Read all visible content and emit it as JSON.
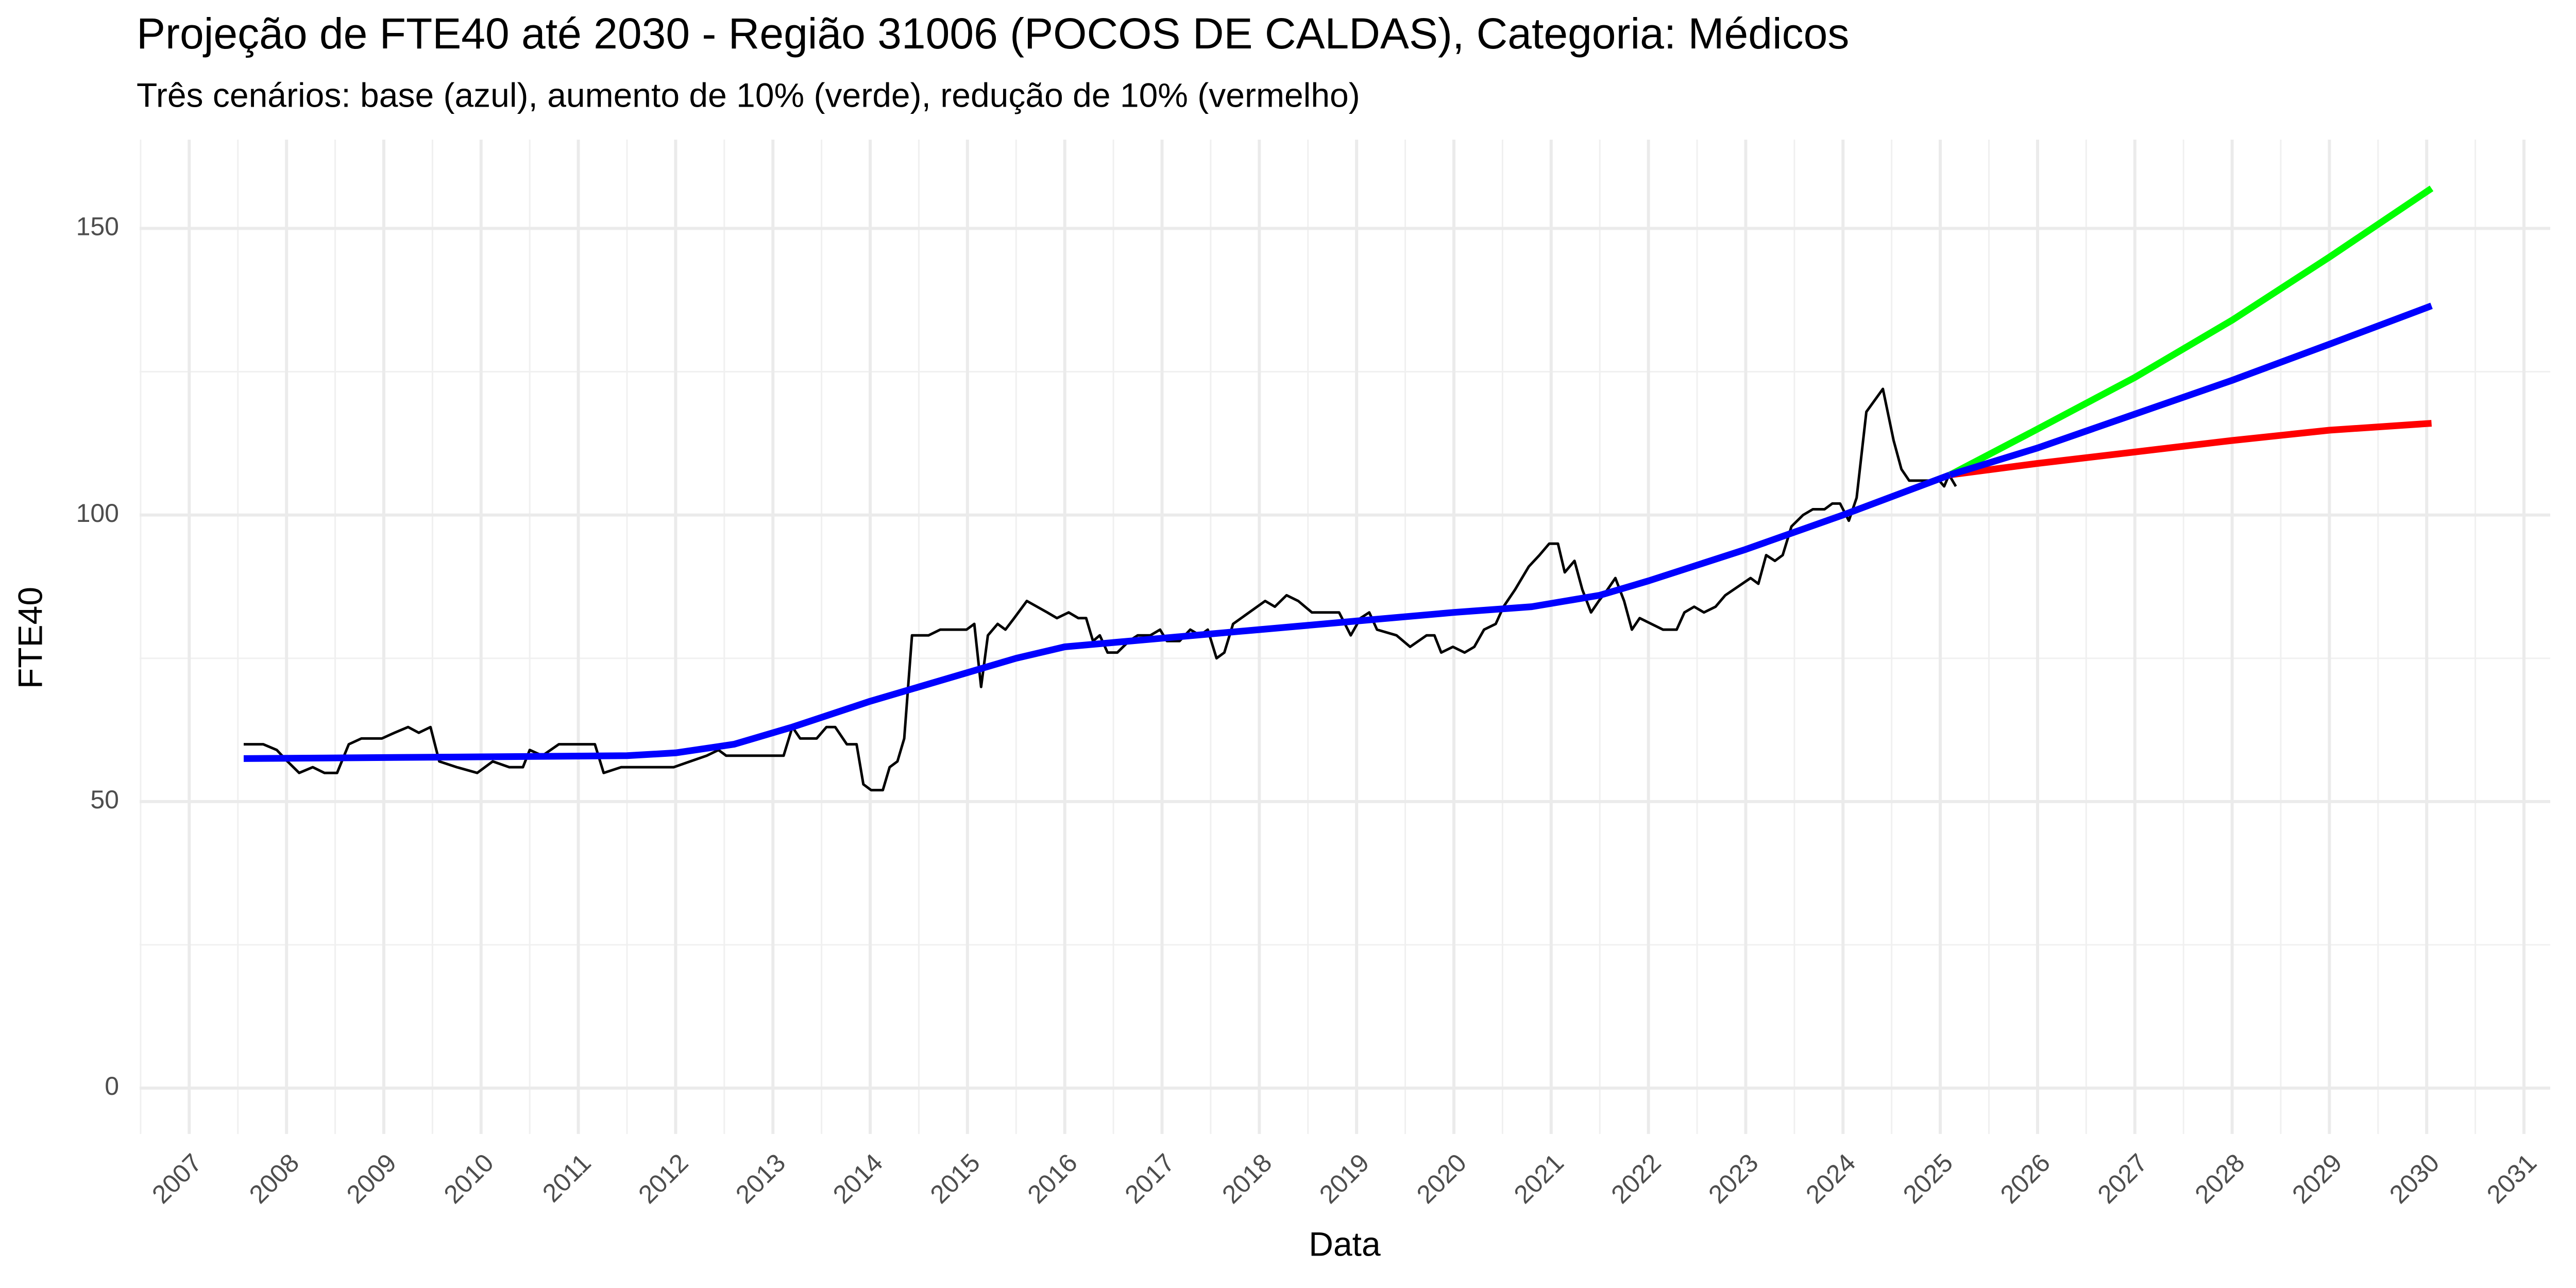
{
  "chart_data": {
    "type": "line",
    "title": "Projeção de FTE40 até 2030 - Região 31006 (POCOS DE CALDAS), Categoria: Médicos",
    "subtitle": "Três cenários: base (azul), aumento de 10% (verde), redução de 10% (vermelho)",
    "x_label": "Data",
    "y_label": "FTE40",
    "xlim": [
      2006.49,
      2031.27
    ],
    "ylim": [
      -8,
      165.5
    ],
    "xticks": [
      2007,
      2008,
      2009,
      2010,
      2011,
      2012,
      2013,
      2014,
      2015,
      2016,
      2017,
      2018,
      2019,
      2020,
      2021,
      2022,
      2023,
      2024,
      2025,
      2026,
      2027,
      2028,
      2029,
      2030,
      2031
    ],
    "xminorticks": [
      2006.5,
      2007.5,
      2008.5,
      2009.5,
      2010.5,
      2011.5,
      2012.5,
      2013.5,
      2014.5,
      2015.5,
      2016.5,
      2017.5,
      2018.5,
      2019.5,
      2020.5,
      2021.5,
      2022.5,
      2023.5,
      2024.5,
      2025.5,
      2026.5,
      2027.5,
      2028.5,
      2029.5,
      2030.5
    ],
    "yticks": [
      0,
      50,
      100,
      150
    ],
    "yminorticks": [
      25,
      75,
      125
    ],
    "grid": true,
    "series": [
      {
        "color": "#000000",
        "width": "thin",
        "x": [
          2007.56,
          2007.76,
          2007.9,
          2008.01,
          2008.13,
          2008.27,
          2008.39,
          2008.52,
          2008.64,
          2008.77,
          2008.98,
          2009.11,
          2009.25,
          2009.36,
          2009.48,
          2009.57,
          2009.75,
          2009.96,
          2010.12,
          2010.29,
          2010.43,
          2010.5,
          2010.63,
          2010.8,
          2011.17,
          2011.26,
          2011.44,
          2011.98,
          2012.15,
          2012.32,
          2012.44,
          2012.52,
          2013.11,
          2013.2,
          2013.28,
          2013.45,
          2013.55,
          2013.64,
          2013.76,
          2013.86,
          2013.93,
          2014.01,
          2014.13,
          2014.2,
          2014.28,
          2014.35,
          2014.43,
          2014.6,
          2014.72,
          2014.99,
          2015.07,
          2015.14,
          2015.21,
          2015.31,
          2015.39,
          2015.48,
          2015.61,
          2015.82,
          2015.92,
          2016.04,
          2016.14,
          2016.22,
          2016.29,
          2016.36,
          2016.44,
          2016.54,
          2016.66,
          2016.75,
          2016.88,
          2016.98,
          2017.05,
          2017.18,
          2017.29,
          2017.39,
          2017.47,
          2017.56,
          2017.64,
          2017.73,
          2018.06,
          2018.16,
          2018.28,
          2018.4,
          2018.54,
          2018.82,
          2018.94,
          2019.04,
          2019.13,
          2019.21,
          2019.41,
          2019.55,
          2019.72,
          2019.8,
          2019.87,
          2019.99,
          2020.11,
          2020.21,
          2020.31,
          2020.43,
          2020.51,
          2020.63,
          2020.77,
          2020.88,
          2020.98,
          2021.07,
          2021.14,
          2021.24,
          2021.32,
          2021.41,
          2021.49,
          2021.58,
          2021.66,
          2021.75,
          2021.83,
          2021.91,
          2022.03,
          2022.15,
          2022.29,
          2022.37,
          2022.47,
          2022.57,
          2022.69,
          2022.79,
          2023.05,
          2023.13,
          2023.21,
          2023.3,
          2023.38,
          2023.47,
          2023.59,
          2023.69,
          2023.81,
          2023.89,
          2023.97,
          2024.06,
          2024.14,
          2024.24,
          2024.41,
          2024.52,
          2024.6,
          2024.68,
          2024.99,
          2025.04,
          2025.09,
          2025.16
        ],
        "values": [
          60,
          60,
          59,
          57,
          55,
          56,
          55,
          55,
          60,
          61,
          61,
          62,
          63,
          62,
          63,
          57,
          56,
          55,
          57,
          56,
          56,
          59,
          58,
          60,
          60,
          55,
          56,
          56,
          57,
          58,
          59,
          58,
          58,
          63,
          61,
          61,
          63,
          63,
          60,
          60,
          53,
          52,
          52,
          56,
          57,
          61,
          79,
          79,
          80,
          80,
          81,
          70,
          79,
          81,
          80,
          82,
          85,
          83,
          82,
          83,
          82,
          82,
          78,
          79,
          76,
          76,
          78,
          79,
          79,
          80,
          78,
          78,
          80,
          79,
          80,
          75,
          76,
          81,
          85,
          84,
          86,
          85,
          83,
          83,
          79,
          82,
          83,
          80,
          79,
          77,
          79,
          79,
          76,
          77,
          76,
          77,
          80,
          81,
          84,
          87,
          91,
          93,
          95,
          95,
          90,
          92,
          87,
          83,
          85,
          87,
          89,
          85,
          80,
          82,
          81,
          80,
          80,
          83,
          84,
          83,
          84,
          86,
          89,
          88,
          93,
          92,
          93,
          98,
          100,
          101,
          101,
          102,
          102,
          99,
          103,
          118,
          122,
          113,
          108,
          106,
          106,
          105,
          107,
          105
        ]
      },
      {
        "color": "#0000ff",
        "width": "thick",
        "x": [
          2007.56,
          2010.0,
          2011.5,
          2012.0,
          2012.6,
          2013.2,
          2014.0,
          2015.0,
          2015.5,
          2016.0,
          2017.0,
          2018.0,
          2019.0,
          2020.0,
          2020.8,
          2021.5,
          2022.0,
          2023.0,
          2024.0,
          2025.1
        ],
        "values": [
          57.5,
          57.8,
          58,
          58.5,
          60,
          63,
          67.5,
          72.5,
          75,
          77,
          78.5,
          80,
          81.5,
          83,
          84,
          86,
          88.5,
          94,
          100,
          107
        ]
      },
      {
        "color": "#00ff00",
        "width": "thick",
        "x": [
          2025.1,
          2026,
          2027,
          2028,
          2029,
          2030.05
        ],
        "values": [
          107,
          115,
          124,
          134,
          145,
          157
        ]
      },
      {
        "color": "#ff0000",
        "width": "thick",
        "x": [
          2025.1,
          2026,
          2027,
          2028,
          2029,
          2030.05
        ],
        "values": [
          107,
          109,
          111,
          113,
          114.8,
          116
        ]
      },
      {
        "color": "#0000ff",
        "width": "thick",
        "x": [
          2025.1,
          2026,
          2027,
          2028,
          2029,
          2030.05
        ],
        "values": [
          107,
          111.7,
          117.6,
          123.5,
          129.8,
          136.5
        ]
      }
    ]
  }
}
